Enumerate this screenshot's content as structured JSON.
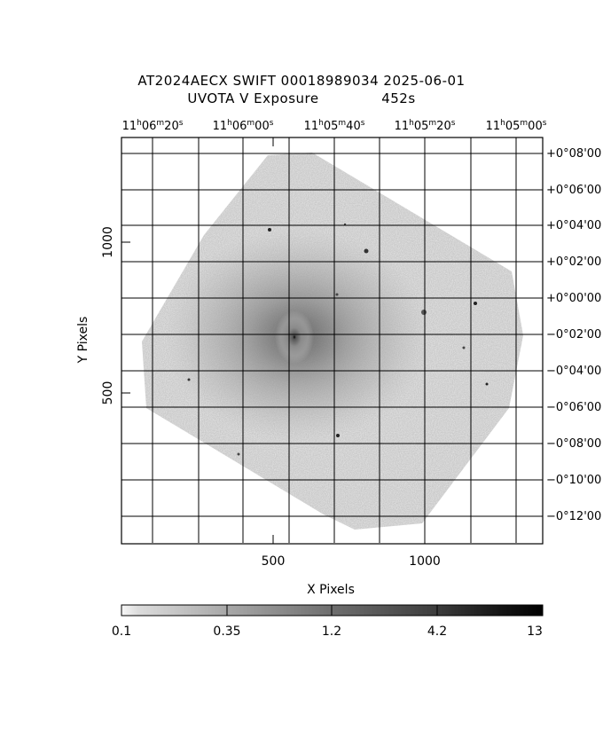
{
  "header": {
    "title_line1": "AT2024AECX SWIFT 00018989034 2025-06-01",
    "title_line2_left": "UVOTA V Exposure",
    "title_line2_right": "452s"
  },
  "axes": {
    "xlabel": "X Pixels",
    "ylabel": "Y Pixels",
    "x_ticks": [
      "500",
      "1000"
    ],
    "y_ticks": [
      "500",
      "1000"
    ],
    "ra_ticks": [
      "11h06m20s",
      "11h06m00s",
      "11h05m40s",
      "11h05m20s",
      "11h05m00s"
    ],
    "dec_ticks": [
      "+0°08'00",
      "+0°06'00",
      "+0°04'00",
      "+0°02'00",
      "+0°00'00",
      "−0°02'00",
      "−0°04'00",
      "−0°06'00",
      "−0°08'00",
      "−0°10'00",
      "−0°12'00"
    ]
  },
  "colorbar": {
    "labels": [
      "0.1",
      "0.35",
      "1.2",
      "4.2",
      "13"
    ],
    "colors": [
      "#f2f2f2",
      "#c6c6c6",
      "#9c9c9c",
      "#707070",
      "#444444",
      "#1a1a1a",
      "#000000"
    ]
  },
  "image_colors": {
    "background": "#ffffff",
    "frame": "#000000",
    "field": "#c8c8c8"
  }
}
